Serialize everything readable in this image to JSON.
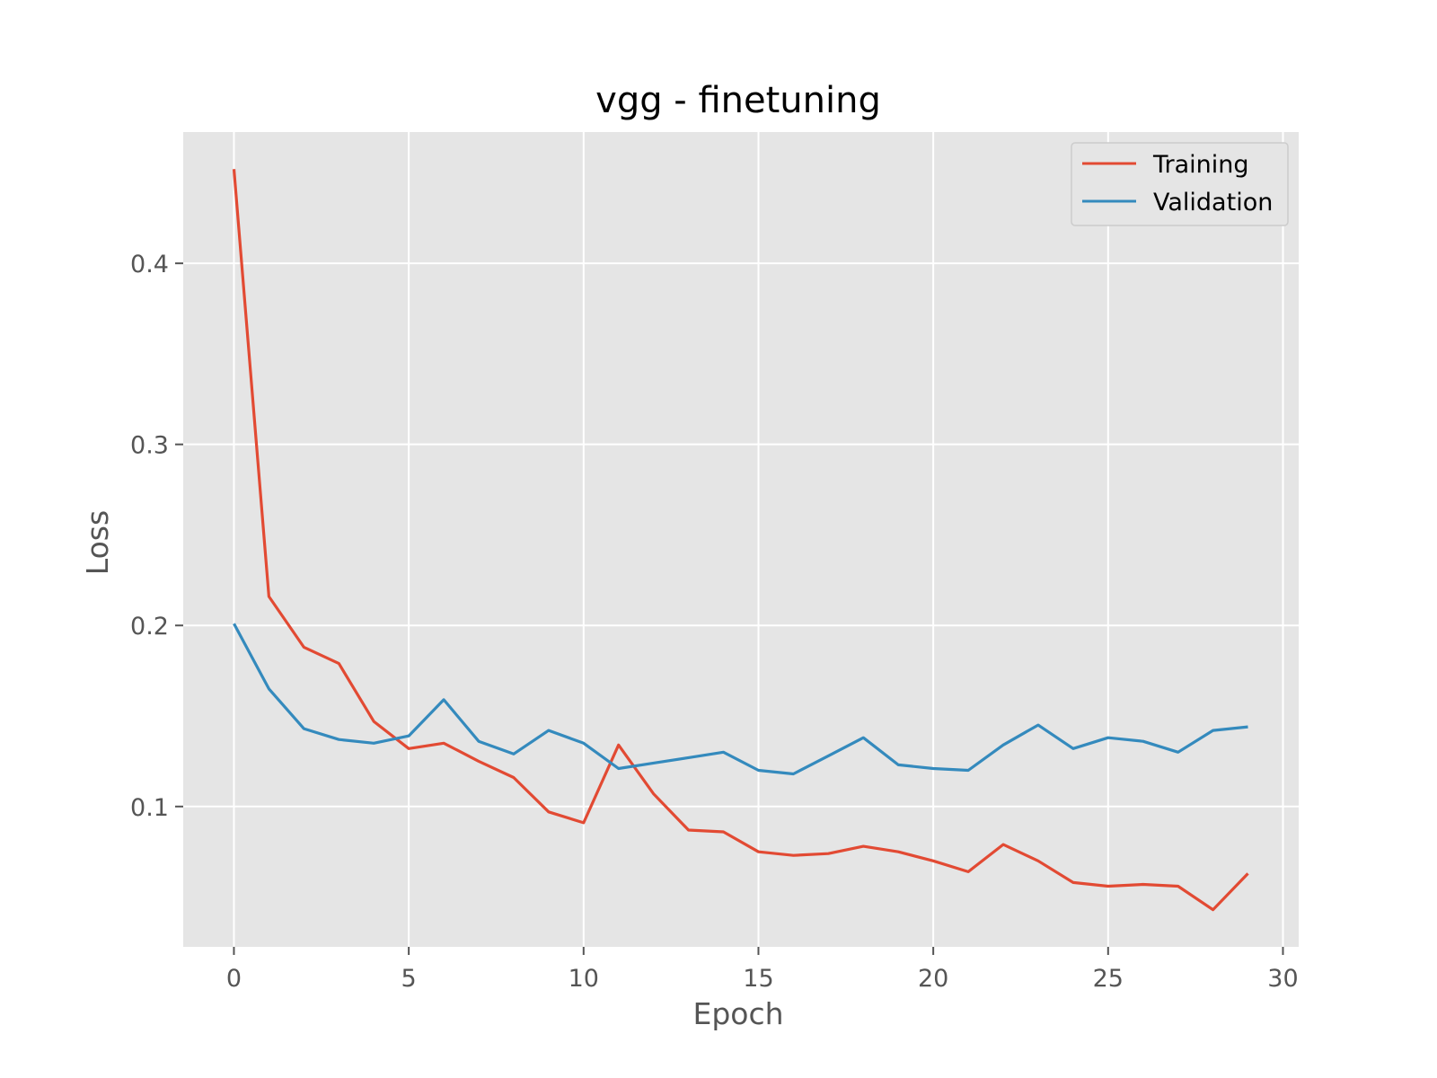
{
  "chart_data": {
    "type": "line",
    "title": "vgg - finetuning",
    "xlabel": "Epoch",
    "ylabel": "Loss",
    "xlim": [
      -1.45,
      30.45
    ],
    "ylim": [
      0.0225,
      0.4725
    ],
    "grid": true,
    "legend_position": "top-right",
    "xticks": [
      0,
      5,
      10,
      15,
      20,
      25,
      30
    ],
    "xtick_labels": [
      "0",
      "5",
      "10",
      "15",
      "20",
      "25",
      "30"
    ],
    "yticks": [
      0.1,
      0.2,
      0.3,
      0.4
    ],
    "ytick_labels": [
      "0.1",
      "0.2",
      "0.3",
      "0.4"
    ],
    "x": [
      0,
      1,
      2,
      3,
      4,
      5,
      6,
      7,
      8,
      9,
      10,
      11,
      12,
      13,
      14,
      15,
      16,
      17,
      18,
      19,
      20,
      21,
      22,
      23,
      24,
      25,
      26,
      27,
      28,
      29
    ],
    "series": [
      {
        "name": "Training",
        "color": "#E24A33",
        "values": [
          0.452,
          0.216,
          0.188,
          0.179,
          0.147,
          0.132,
          0.135,
          0.125,
          0.116,
          0.097,
          0.091,
          0.134,
          0.107,
          0.087,
          0.086,
          0.075,
          0.073,
          0.074,
          0.078,
          0.075,
          0.07,
          0.064,
          0.079,
          0.07,
          0.058,
          0.056,
          0.057,
          0.056,
          0.043,
          0.063
        ]
      },
      {
        "name": "Validation",
        "color": "#348ABD",
        "values": [
          0.201,
          0.165,
          0.143,
          0.137,
          0.135,
          0.139,
          0.159,
          0.136,
          0.129,
          0.142,
          0.135,
          0.121,
          0.124,
          0.127,
          0.13,
          0.12,
          0.118,
          0.128,
          0.138,
          0.123,
          0.121,
          0.12,
          0.134,
          0.145,
          0.132,
          0.138,
          0.136,
          0.13,
          0.142,
          0.144
        ]
      }
    ]
  }
}
